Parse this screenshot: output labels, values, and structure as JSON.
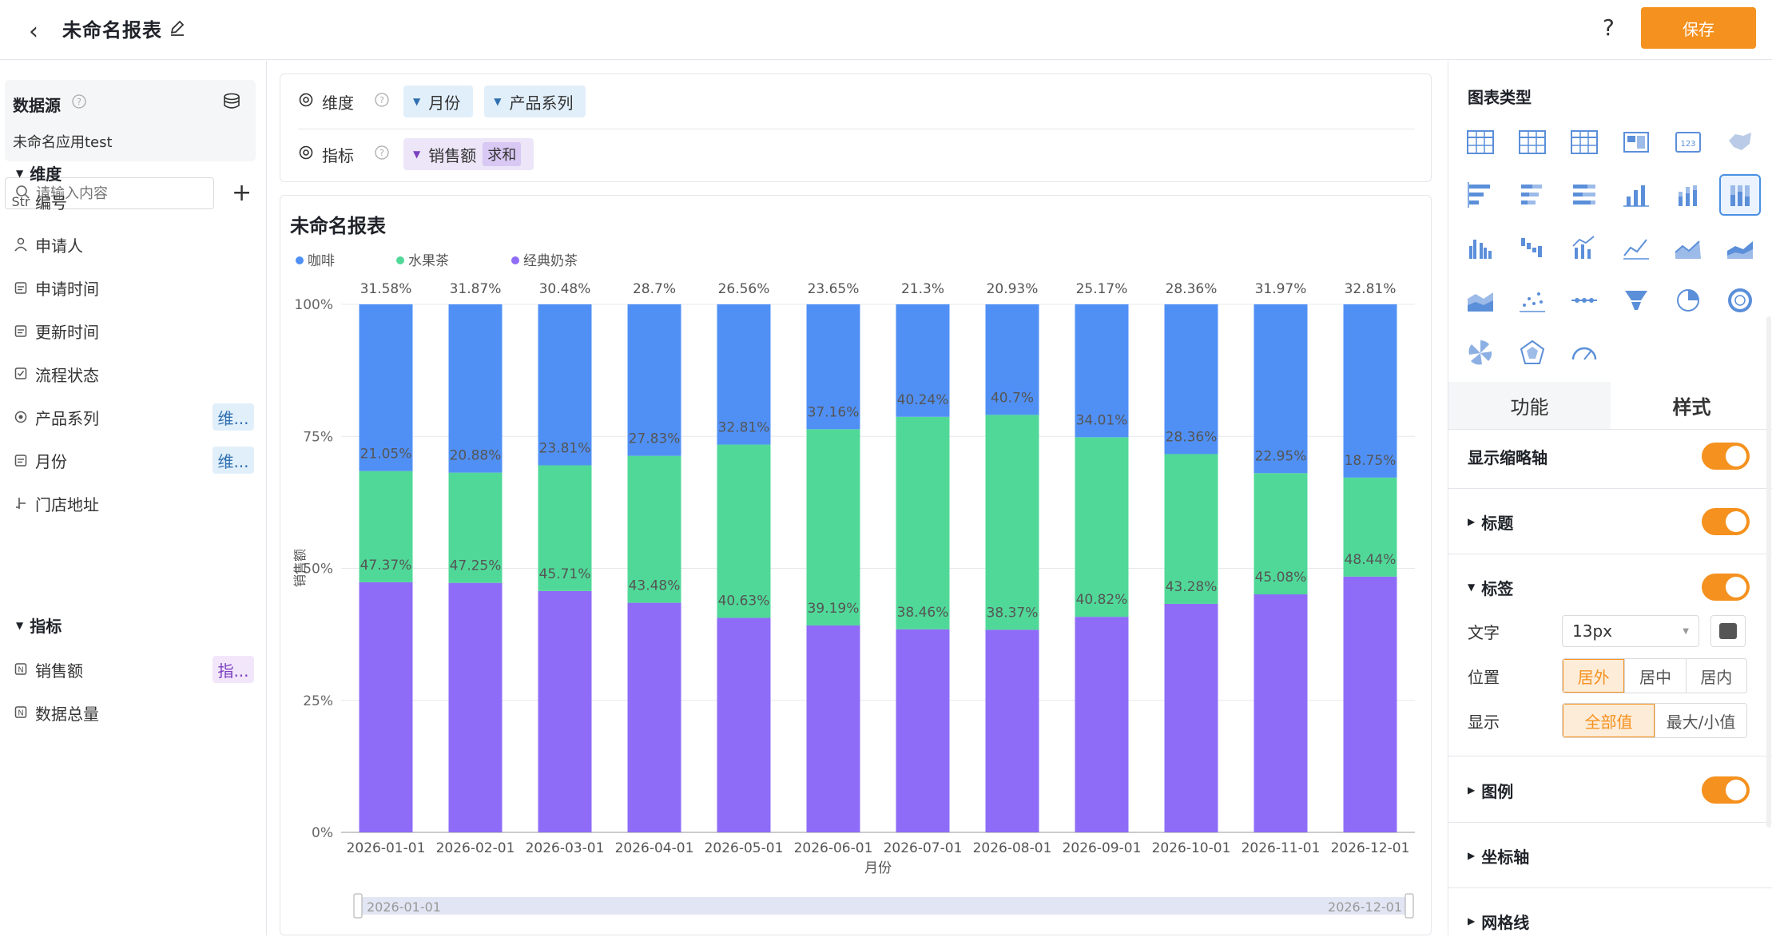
{
  "header": {
    "back_icon": "chevron-left-icon",
    "title": "未命名报表",
    "help": "?",
    "save_label": "保存"
  },
  "datasource": {
    "label": "数据源",
    "name": "未命名应用test",
    "search_placeholder": "请输入内容"
  },
  "dimensions": {
    "header": "维度",
    "fields": [
      {
        "icon": "Str",
        "label": "编号",
        "tag": ""
      },
      {
        "icon": "person-icon",
        "label": "申请人",
        "tag": ""
      },
      {
        "icon": "calendar-icon",
        "label": "申请时间",
        "tag": ""
      },
      {
        "icon": "calendar-icon",
        "label": "更新时间",
        "tag": ""
      },
      {
        "icon": "checkbox-icon",
        "label": "流程状态",
        "tag": ""
      },
      {
        "icon": "radio-icon",
        "label": "产品系列",
        "tag": "维..."
      },
      {
        "icon": "calendar-icon",
        "label": "月份",
        "tag": "维..."
      },
      {
        "icon": "location-icon",
        "label": "门店地址",
        "tag": ""
      }
    ]
  },
  "measures": {
    "header": "指标",
    "fields": [
      {
        "icon": "number-icon",
        "label": "销售额",
        "tag": "指..."
      },
      {
        "icon": "number-icon",
        "label": "数据总量",
        "tag": ""
      }
    ]
  },
  "config": {
    "dimension_label": "维度",
    "dimension_pills": [
      "月份",
      "产品系列"
    ],
    "measure_label": "指标",
    "measure_pill": "销售额",
    "measure_agg": "求和"
  },
  "chart_title": "未命名报表",
  "chart_data": {
    "type": "bar",
    "stacked": "percent",
    "xlabel": "月份",
    "ylabel": "销售额",
    "yticks": [
      "0%",
      "25%",
      "50%",
      "75%",
      "100%"
    ],
    "categories": [
      "2026-01-01",
      "2026-02-01",
      "2026-03-01",
      "2026-04-01",
      "2026-05-01",
      "2026-06-01",
      "2026-07-01",
      "2026-08-01",
      "2026-09-01",
      "2026-10-01",
      "2026-11-01",
      "2026-12-01"
    ],
    "series": [
      {
        "name": "经典奶茶",
        "color": "#8e6cf7",
        "values": [
          47.37,
          47.25,
          45.71,
          43.48,
          40.63,
          39.19,
          38.46,
          38.37,
          40.82,
          43.28,
          45.08,
          48.44
        ],
        "labels": [
          "47.37%",
          "47.25%",
          "45.71%",
          "43.48%",
          "40.63%",
          "39.19%",
          "38.46%",
          "38.37%",
          "40.82%",
          "43.28%",
          "45.08%",
          "48.44%"
        ]
      },
      {
        "name": "水果茶",
        "color": "#50d898",
        "values": [
          21.05,
          20.88,
          23.81,
          27.83,
          32.81,
          37.16,
          40.24,
          40.7,
          34.01,
          28.36,
          22.95,
          18.75
        ],
        "labels": [
          "21.05%",
          "20.88%",
          "23.81%",
          "27.83%",
          "32.81%",
          "37.16%",
          "40.24%",
          "40.7%",
          "34.01%",
          "28.36%",
          "22.95%",
          "18.75%"
        ]
      },
      {
        "name": "咖啡",
        "color": "#5090f5",
        "values": [
          31.58,
          31.87,
          30.48,
          28.7,
          26.56,
          23.65,
          21.3,
          20.93,
          25.17,
          28.36,
          31.97,
          32.81
        ],
        "labels": [
          "31.58%",
          "31.87%",
          "30.48%",
          "28.7%",
          "26.56%",
          "23.65%",
          "21.3%",
          "20.93%",
          "25.17%",
          "28.36%",
          "31.97%",
          "32.81%"
        ]
      }
    ],
    "legend": [
      "咖啡",
      "水果茶",
      "经典奶茶"
    ],
    "legend_placement": "top-left",
    "zoom_range": [
      "2026-01-01",
      "2026-12-01"
    ]
  },
  "right_panel": {
    "chart_type_title": "图表类型",
    "tabs": [
      "功能",
      "样式"
    ],
    "show_zoom_axis": "显示缩略轴",
    "title_section": "标题",
    "label_section": "标签",
    "text_label": "文字",
    "font_size": "13px",
    "position_label": "位置",
    "position_options": [
      "居外",
      "居中",
      "居内"
    ],
    "display_label": "显示",
    "display_options": [
      "全部值",
      "最大/小值"
    ],
    "legend_section": "图例",
    "axis_section": "坐标轴",
    "grid_section": "网格线",
    "accent": "#f5911e"
  }
}
